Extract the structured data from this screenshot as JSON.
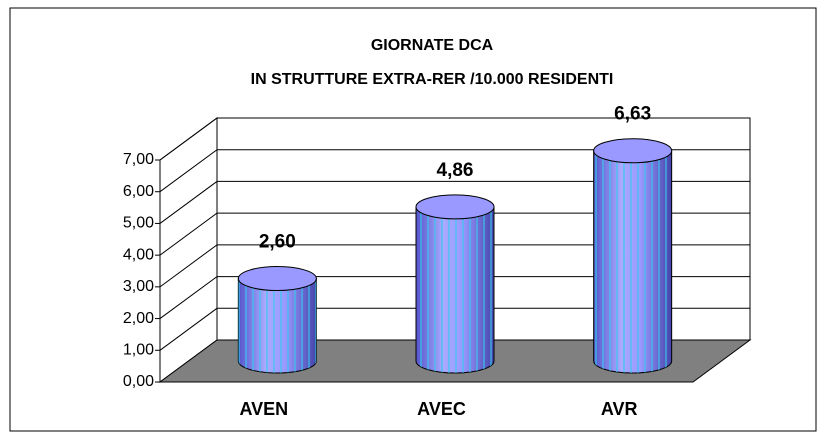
{
  "chart_data": {
    "type": "bar3d",
    "title": "GIORNATE DCA",
    "subtitle": "IN STRUTTURE EXTRA-RER /10.000 RESIDENTI",
    "categories": [
      "AVEN",
      "AVEC",
      "AVR"
    ],
    "values": [
      2.6,
      4.86,
      6.63
    ],
    "value_labels": [
      "2,60",
      "4,86",
      "6,63"
    ],
    "color": "#9999ff",
    "ylim": [
      0,
      7
    ],
    "yticks": [
      {
        "value": 0,
        "label": "0,00"
      },
      {
        "value": 1,
        "label": "1,00"
      },
      {
        "value": 2,
        "label": "2,00"
      },
      {
        "value": 3,
        "label": "3,00"
      },
      {
        "value": 4,
        "label": "4,00"
      },
      {
        "value": 5,
        "label": "5,00"
      },
      {
        "value": 6,
        "label": "6,00"
      },
      {
        "value": 7,
        "label": "7,00"
      }
    ],
    "grid": true
  }
}
